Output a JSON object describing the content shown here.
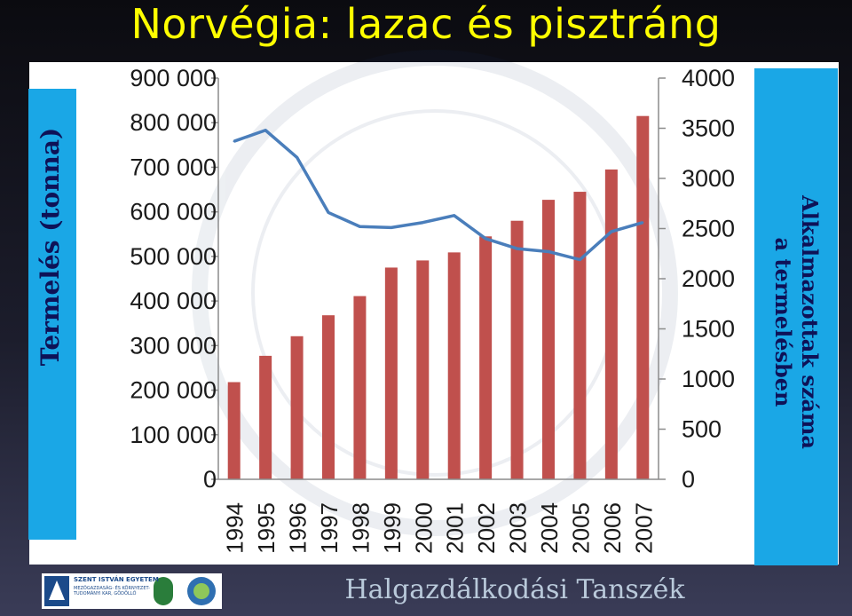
{
  "slide": {
    "title": "Norvégia: lazac és pisztráng",
    "footer": "Halgazdálkodási Tanszék",
    "logo_text_line1": "SZENT ISTVÁN EGYETEM",
    "logo_text_line2": "MEZŐGAZDASÁG- ÉS KÖRNYEZET- TUDOMÁNYI KAR, GÖDÖLLŐ"
  },
  "colors": {
    "title": "#ffff00",
    "band": "#1aa7e6",
    "bar": "#c0504d",
    "line": "#4a7ebb",
    "axis_label": "#0e1257"
  },
  "chart_data": {
    "type": "bar",
    "title": "",
    "categories": [
      "1994",
      "1995",
      "1996",
      "1997",
      "1998",
      "1999",
      "2000",
      "2001",
      "2002",
      "2003",
      "2004",
      "2005",
      "2006",
      "2007"
    ],
    "series": [
      {
        "chart_type": "bar",
        "axis": "left",
        "values": [
          218000,
          277000,
          321000,
          368000,
          411000,
          475000,
          491000,
          509000,
          545000,
          580000,
          627000,
          645000,
          695000,
          815000
        ]
      },
      {
        "chart_type": "line",
        "axis": "right",
        "values": [
          3370,
          3480,
          3210,
          2660,
          2520,
          2510,
          2560,
          2630,
          2400,
          2300,
          2270,
          2190,
          2470,
          2560
        ]
      }
    ],
    "ylabel": "Termelés (tonna)",
    "y2label_line1": "Alkalmazottak száma",
    "y2label_line2": "a termelésben",
    "ylim": [
      0,
      900000
    ],
    "y2lim": [
      0,
      4000
    ],
    "yticks": [
      "0",
      "100 000",
      "200 000",
      "300 000",
      "400 000",
      "500 000",
      "600 000",
      "700 000",
      "800 000",
      "900 000"
    ],
    "y2ticks": [
      "0",
      "500",
      "1000",
      "1500",
      "2000",
      "2500",
      "3000",
      "3500",
      "4000"
    ],
    "grid": false,
    "legend": "none"
  }
}
